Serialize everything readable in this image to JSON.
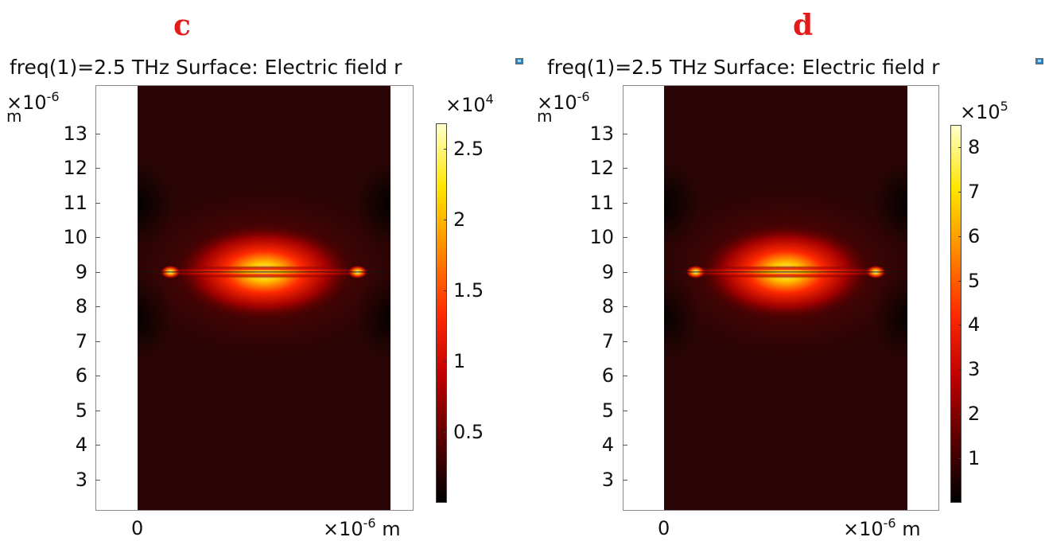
{
  "chart_data": [
    {
      "type": "heatmap",
      "panel_label": "c",
      "title": "freq(1)=2.5 THz  Surface: Electric field r",
      "frequency_THz": 2.5,
      "y_axis": {
        "multiplier": "×10",
        "exponent": "-6",
        "unit": "m",
        "ticks": [
          13,
          12,
          11,
          10,
          9,
          8,
          7,
          6,
          5,
          4,
          3
        ],
        "ylim": [
          2.1,
          14.4
        ]
      },
      "x_axis": {
        "ticks": [
          "0"
        ],
        "multiplier": "×10",
        "exponent": "-6",
        "unit": "m"
      },
      "colorbar": {
        "multiplier": "×10",
        "exponent": "4",
        "ticks": [
          "2.5",
          "2",
          "1.5",
          "1",
          "0.5"
        ],
        "tick_values": [
          2.5,
          2,
          1.5,
          1,
          0.5
        ],
        "range": [
          0,
          2.68
        ],
        "colormap": "heat",
        "colors": [
          "#000000",
          "#5a0000",
          "#c00000",
          "#ff2a00",
          "#ff8a00",
          "#ffe600",
          "#ffffcc"
        ]
      },
      "field_peak_y": 9
    },
    {
      "type": "heatmap",
      "panel_label": "d",
      "title": "freq(1)=2.5 THz  Surface: Electric field r",
      "frequency_THz": 2.5,
      "y_axis": {
        "multiplier": "×10",
        "exponent": "-6",
        "unit": "m",
        "ticks": [
          13,
          12,
          11,
          10,
          9,
          8,
          7,
          6,
          5,
          4,
          3
        ],
        "ylim": [
          2.1,
          14.4
        ]
      },
      "x_axis": {
        "ticks": [
          "0"
        ],
        "multiplier": "×10",
        "exponent": "-6",
        "unit": "m"
      },
      "colorbar": {
        "multiplier": "×10",
        "exponent": "5",
        "ticks": [
          "8",
          "7",
          "6",
          "5",
          "4",
          "3",
          "2",
          "1"
        ],
        "tick_values": [
          8,
          7,
          6,
          5,
          4,
          3,
          2,
          1
        ],
        "range": [
          0,
          8.5
        ],
        "colormap": "heat",
        "colors": [
          "#000000",
          "#5a0000",
          "#c00000",
          "#ff2a00",
          "#ff8a00",
          "#ffe600",
          "#ffffcc"
        ]
      },
      "field_peak_y": 9
    }
  ]
}
